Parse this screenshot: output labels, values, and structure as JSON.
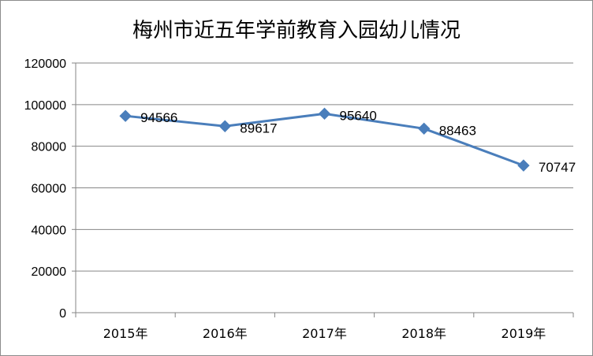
{
  "chart_data": {
    "type": "line",
    "title": "梅州市近五年学前教育入园幼儿情况",
    "categories": [
      "2015年",
      "2016年",
      "2017年",
      "2018年",
      "2019年"
    ],
    "series": [
      {
        "values": [
          94566,
          89617,
          95640,
          88463,
          70747
        ]
      }
    ],
    "data_labels": [
      "94566",
      "89617",
      "95640",
      "88463",
      "70747"
    ],
    "yticks": [
      "0",
      "20000",
      "40000",
      "60000",
      "80000",
      "100000",
      "120000"
    ],
    "ylim": [
      0,
      120000
    ],
    "grid": true,
    "legend": "none",
    "colors": {
      "line": "#4a7ebb",
      "marker": "#4a7ebb",
      "grid": "#868686"
    }
  }
}
